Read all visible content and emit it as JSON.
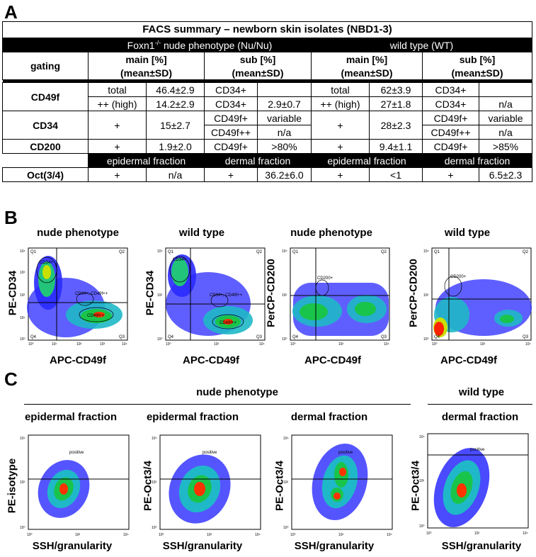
{
  "panels": {
    "a": "A",
    "b": "B",
    "c": "C"
  },
  "table": {
    "title": "FACS summary – newborn skin isolates (NBD1-3)",
    "nude_header_pre": "Foxn1",
    "nude_header_sup": "-/-",
    "nude_header_post": " nude phenotype (Nu/Nu)",
    "wt_header": "wild type (WT)",
    "gating": "gating",
    "main_pct": "main [%]",
    "sub_pct": "sub [%]",
    "mean_sd": "(mean±SD)",
    "epidermal_fraction": "epidermal fraction",
    "dermal_fraction": "dermal fraction",
    "rows": {
      "cd49f": {
        "label": "CD49f",
        "nu": [
          [
            "total",
            "46.4±2.9",
            "CD34+",
            ""
          ],
          [
            "++ (high)",
            "14.2±2.9",
            "CD34+",
            "2.9±0.7"
          ]
        ],
        "wt": [
          [
            "total",
            "62±3.9",
            "CD34+",
            ""
          ],
          [
            "++ (high)",
            "27±1.8",
            "CD34+",
            "n/a"
          ]
        ]
      },
      "cd34": {
        "label": "CD34",
        "nu_main": "+",
        "nu_val": "15±2.7",
        "nu_sub": [
          [
            "CD49f+",
            "variable"
          ],
          [
            "CD49f++",
            "n/a"
          ]
        ],
        "wt_main": "+",
        "wt_val": "28±2.3",
        "wt_sub": [
          [
            "CD49f+",
            "variable"
          ],
          [
            "CD49f++",
            "n/a"
          ]
        ]
      },
      "cd200": {
        "label": "CD200",
        "nu": [
          "+",
          "1.9±2.0",
          "CD49f+",
          ">80%"
        ],
        "wt": [
          "+",
          "9.4±1.1",
          "CD49f+",
          ">85%"
        ]
      },
      "oct": {
        "label": "Oct(3/4)",
        "nu": [
          "+",
          "n/a",
          "+",
          "36.2±6.0"
        ],
        "wt": [
          "+",
          "<1",
          "+",
          "6.5±2.3"
        ]
      }
    }
  },
  "panel_b": {
    "plots": [
      {
        "title": "nude phenotype",
        "ylabel": "PE-CD34",
        "xlabel": "APC-CD49f",
        "gates": [
          "CD34+",
          "CD34+, CD49f++",
          "CD49f++"
        ]
      },
      {
        "title": "wild type",
        "ylabel": "PE-CD34",
        "xlabel": "APC-CD49f",
        "gates": [
          "CD34+",
          "CD34+, CD49f++",
          "CD49f++"
        ]
      },
      {
        "title": "nude phenotype",
        "ylabel": "PerCP-CD200",
        "xlabel": "APC-CD49f",
        "gates": [
          "CD200+"
        ]
      },
      {
        "title": "wild type",
        "ylabel": "PerCP-CD200",
        "xlabel": "APC-CD49f",
        "gates": [
          "CD200+"
        ]
      }
    ],
    "quadrants": [
      "Q1",
      "Q2",
      "Q3",
      "Q4"
    ]
  },
  "panel_c": {
    "group_nude": "nude phenotype",
    "group_wt": "wild type",
    "plots": [
      {
        "title": "epidermal fraction",
        "ylabel": "PE-isotype",
        "xlabel": "SSH/granularity",
        "gate": "positive"
      },
      {
        "title": "epidermal fraction",
        "ylabel": "PE-Oct3/4",
        "xlabel": "SSH/granularity",
        "gate": "positive"
      },
      {
        "title": "dermal fraction",
        "ylabel": "PE-Oct3/4",
        "xlabel": "SSH/granularity",
        "gate": "positive"
      },
      {
        "title": "dermal fraction",
        "ylabel": "PE-Oct3/4",
        "xlabel": "SSH/granularity",
        "gate": "positive"
      }
    ]
  },
  "axis_ticks": [
    "10⁰",
    "10¹",
    "10²",
    "10³",
    "10⁴"
  ],
  "colors": {
    "density_low": "#1a1aff",
    "density_mid": "#00cc44",
    "density_high": "#ff2200",
    "header_bg": "#000000"
  }
}
